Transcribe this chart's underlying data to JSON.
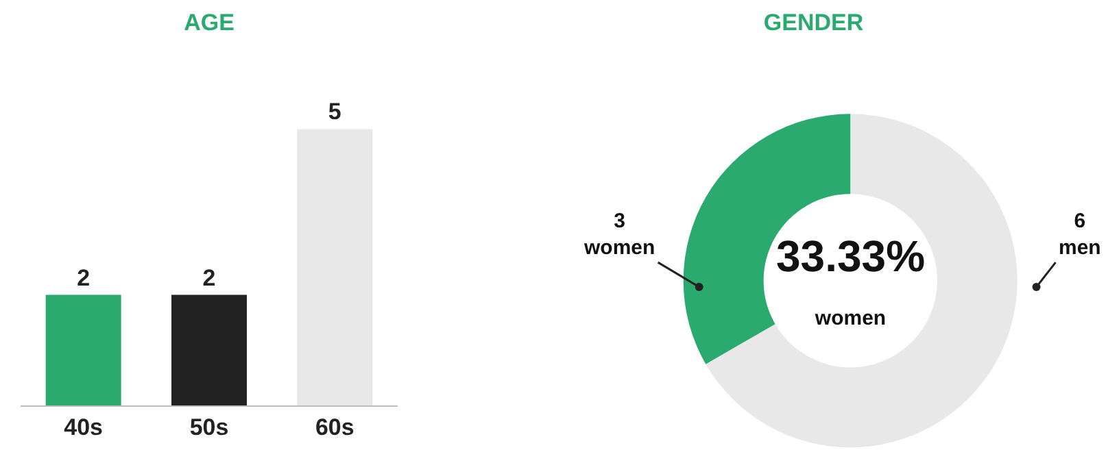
{
  "chart_data": [
    {
      "type": "bar",
      "title": "AGE",
      "categories": [
        "40s",
        "50s",
        "60s"
      ],
      "values": [
        2,
        2,
        5
      ],
      "colors": [
        "#2aaa6e",
        "#222222",
        "#e8e8e8"
      ],
      "data_labels": true,
      "tick_labels": "x"
    },
    {
      "type": "donut",
      "title": "GENDER",
      "categories": [
        "men",
        "women"
      ],
      "values": [
        6,
        3
      ],
      "colors": [
        "#e8e8e8",
        "#2aaa6e"
      ],
      "value_labels": [
        "6",
        "3"
      ],
      "annotations": [
        "33.33%\nwomen"
      ]
    }
  ]
}
